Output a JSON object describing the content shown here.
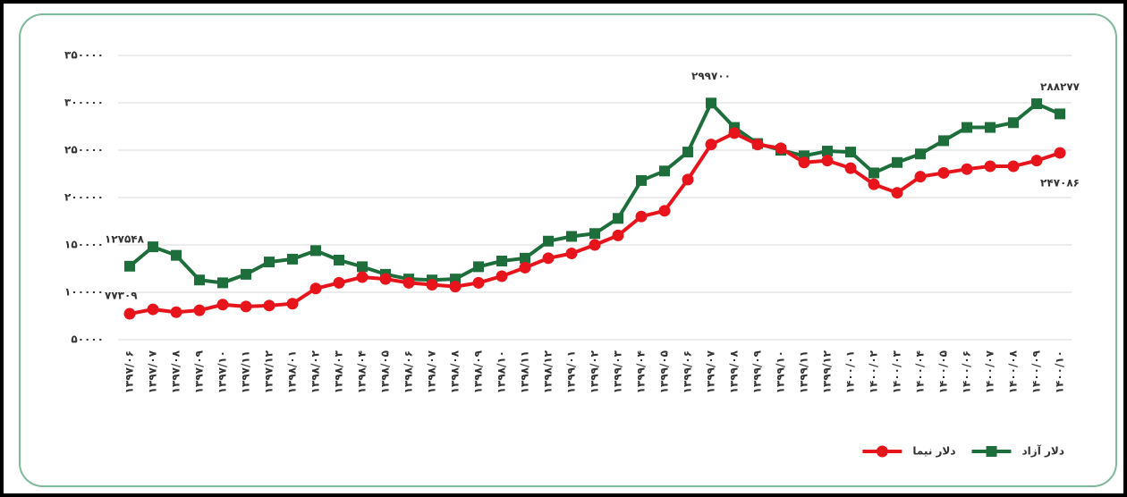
{
  "chart_data": {
    "type": "line",
    "categories": [
      "۱۳۹۷/۰۶",
      "۱۳۹۷/۰۷",
      "۱۳۹۷/۰۸",
      "۱۳۹۷/۰۹",
      "۱۳۹۷/۱۰",
      "۱۳۹۷/۱۱",
      "۱۳۹۷/۱۲",
      "۱۳۹۸/۰۱",
      "۱۳۹۸/۰۲",
      "۱۳۹۸/۰۳",
      "۱۳۹۸/۰۴",
      "۱۳۹۸/۰۵",
      "۱۳۹۸/۰۶",
      "۱۳۹۸/۰۷",
      "۱۳۹۸/۰۸",
      "۱۳۹۸/۰۹",
      "۱۳۹۸/۱۰",
      "۱۳۹۸/۱۱",
      "۱۳۹۸/۱۲",
      "۱۳۹۹/۰۱",
      "۱۳۹۹/۰۲",
      "۱۳۹۹/۰۳",
      "۱۳۹۹/۰۴",
      "۱۳۹۹/۰۵",
      "۱۳۹۹/۰۶",
      "۱۳۹۹/۰۷",
      "۱۳۹۹/۰۸",
      "۱۳۹۹/۰۹",
      "۱۳۹۹/۱۰",
      "۱۳۹۹/۱۱",
      "۱۳۹۹/۱۲",
      "۱۴۰۰/۰۱",
      "۱۴۰۰/۰۲",
      "۱۴۰۰/۰۳",
      "۱۴۰۰/۰۴",
      "۱۴۰۰/۰۵",
      "۱۴۰۰/۰۶",
      "۱۴۰۰/۰۷",
      "۱۴۰۰/۰۸",
      "۱۴۰۰/۰۹",
      "۱۴۰۰/۱۰"
    ],
    "series": [
      {
        "name": "دلار آزاد",
        "color": "#1e6e3c",
        "marker": "square",
        "values": [
          127548,
          148000,
          139000,
          113000,
          110000,
          119000,
          132000,
          135000,
          144000,
          134000,
          127000,
          119000,
          114000,
          113000,
          114000,
          127000,
          133000,
          136000,
          154000,
          159000,
          162000,
          178000,
          218000,
          228000,
          248000,
          299700,
          274000,
          257000,
          250000,
          244000,
          249000,
          248000,
          226000,
          237000,
          246000,
          260000,
          274000,
          274000,
          279000,
          299000,
          288277
        ],
        "value_labels": [
          "۱۲۷۵۴۸",
          null,
          null,
          null,
          null,
          null,
          null,
          null,
          null,
          null,
          null,
          null,
          null,
          null,
          null,
          null,
          null,
          null,
          null,
          null,
          null,
          null,
          null,
          null,
          null,
          "۲۹۹۷۰۰",
          null,
          null,
          null,
          null,
          null,
          null,
          null,
          null,
          null,
          null,
          null,
          null,
          null,
          null,
          "۲۸۸۲۷۷"
        ]
      },
      {
        "name": "دلار نیما",
        "color": "#e8141c",
        "marker": "circle",
        "values": [
          77309,
          82000,
          79000,
          81000,
          87000,
          85000,
          86000,
          88000,
          104000,
          110000,
          116000,
          114000,
          110000,
          108000,
          106000,
          110000,
          117000,
          126000,
          136000,
          141000,
          150000,
          160000,
          180000,
          186000,
          219000,
          256000,
          268000,
          256000,
          252000,
          237000,
          239000,
          231000,
          214000,
          205000,
          222000,
          226000,
          230000,
          233000,
          233000,
          239000,
          247086
        ],
        "value_labels": [
          "۷۷۳۰۹",
          null,
          null,
          null,
          null,
          null,
          null,
          null,
          null,
          null,
          null,
          null,
          null,
          null,
          null,
          null,
          null,
          null,
          null,
          null,
          null,
          null,
          null,
          null,
          null,
          null,
          null,
          null,
          null,
          null,
          null,
          null,
          null,
          null,
          null,
          null,
          null,
          null,
          null,
          null,
          "۲۴۷۰۸۶"
        ]
      }
    ],
    "ylim": [
      50000,
      350000
    ],
    "yticks": [
      {
        "value": 50000,
        "label": "۵۰۰۰۰"
      },
      {
        "value": 100000,
        "label": "۱۰۰۰۰۰"
      },
      {
        "value": 150000,
        "label": "۱۵۰۰۰۰"
      },
      {
        "value": 200000,
        "label": "۲۰۰۰۰۰"
      },
      {
        "value": 250000,
        "label": "۲۵۰۰۰۰"
      },
      {
        "value": 300000,
        "label": "۳۰۰۰۰۰"
      },
      {
        "value": 350000,
        "label": "۳۵۰۰۰۰"
      }
    ],
    "grid": true,
    "legend": "bottom-right"
  }
}
